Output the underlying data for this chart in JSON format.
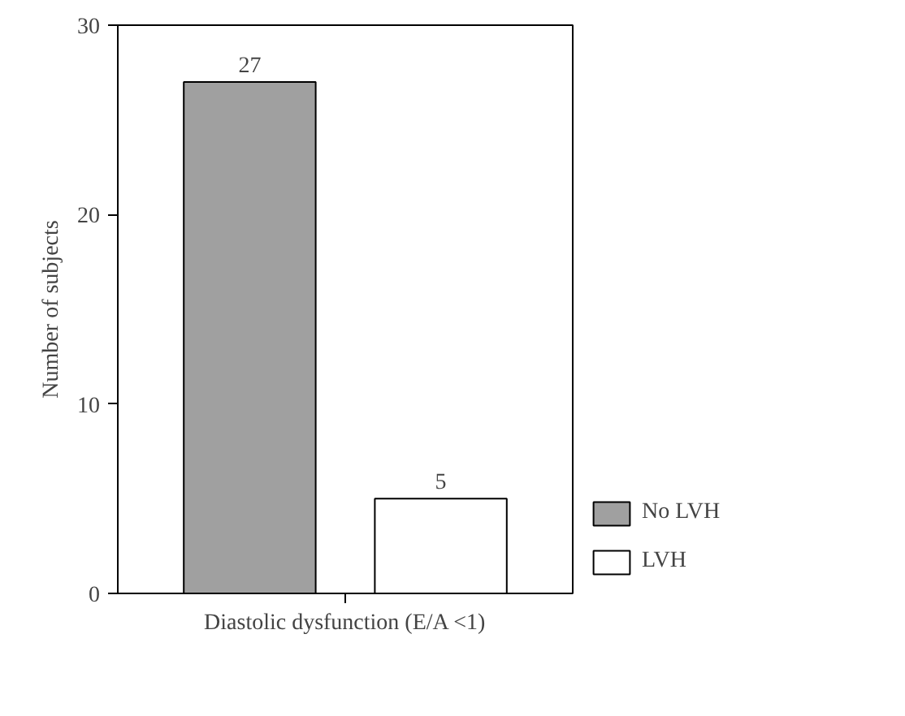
{
  "chart_data": {
    "type": "bar",
    "xlabel": "Diastolic dysfunction (E/A <1)",
    "ylabel": "Number of subjects",
    "categories": [
      null
    ],
    "series": [
      {
        "name": "No LVH",
        "color": "#a0a0a0",
        "values": [
          27
        ]
      },
      {
        "name": "LVH",
        "color": "#ffffff",
        "values": [
          5
        ]
      }
    ],
    "ylim": [
      0,
      30
    ],
    "yticks": [
      0,
      10,
      20,
      30
    ],
    "legend": "right",
    "data_labels": true
  }
}
